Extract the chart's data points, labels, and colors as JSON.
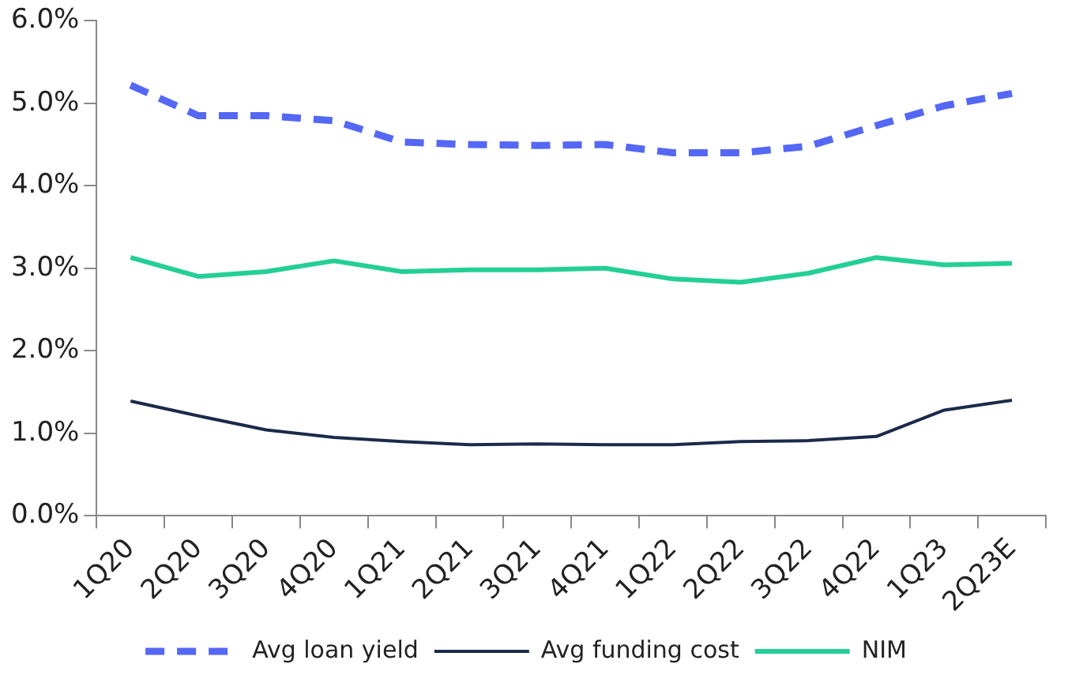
{
  "chart_data": {
    "type": "line",
    "categories": [
      "1Q20",
      "2Q20",
      "3Q20",
      "4Q20",
      "1Q21",
      "2Q21",
      "3Q21",
      "4Q21",
      "1Q22",
      "2Q22",
      "3Q22",
      "4Q22",
      "1Q23",
      "2Q23E"
    ],
    "series": [
      {
        "name": "Avg loan yield",
        "color": "#5468f5",
        "line_style": "dashed",
        "values": [
          5.22,
          4.85,
          4.85,
          4.79,
          4.53,
          4.5,
          4.49,
          4.5,
          4.4,
          4.4,
          4.48,
          4.73,
          4.97,
          5.12
        ]
      },
      {
        "name": "Avg funding cost",
        "color": "#1b2a4a",
        "line_style": "solid",
        "values": [
          1.39,
          1.21,
          1.04,
          0.95,
          0.9,
          0.86,
          0.87,
          0.86,
          0.86,
          0.9,
          0.91,
          0.96,
          1.28,
          1.4
        ]
      },
      {
        "name": "NIM",
        "color": "#24cf96",
        "line_style": "solid",
        "values": [
          3.13,
          2.9,
          2.96,
          3.09,
          2.96,
          2.98,
          2.98,
          3.0,
          2.87,
          2.83,
          2.94,
          3.13,
          3.04,
          3.06
        ]
      }
    ],
    "ylim": [
      0,
      6
    ],
    "yticks": [
      {
        "value": 0,
        "label": "0.0%"
      },
      {
        "value": 1,
        "label": "1.0%"
      },
      {
        "value": 2,
        "label": "2.0%"
      },
      {
        "value": 3,
        "label": "3.0%"
      },
      {
        "value": 4,
        "label": "4.0%"
      },
      {
        "value": 5,
        "label": "5.0%"
      },
      {
        "value": 6,
        "label": "6.0%"
      }
    ],
    "grid": false,
    "legend": "bottom",
    "marker": "none"
  }
}
